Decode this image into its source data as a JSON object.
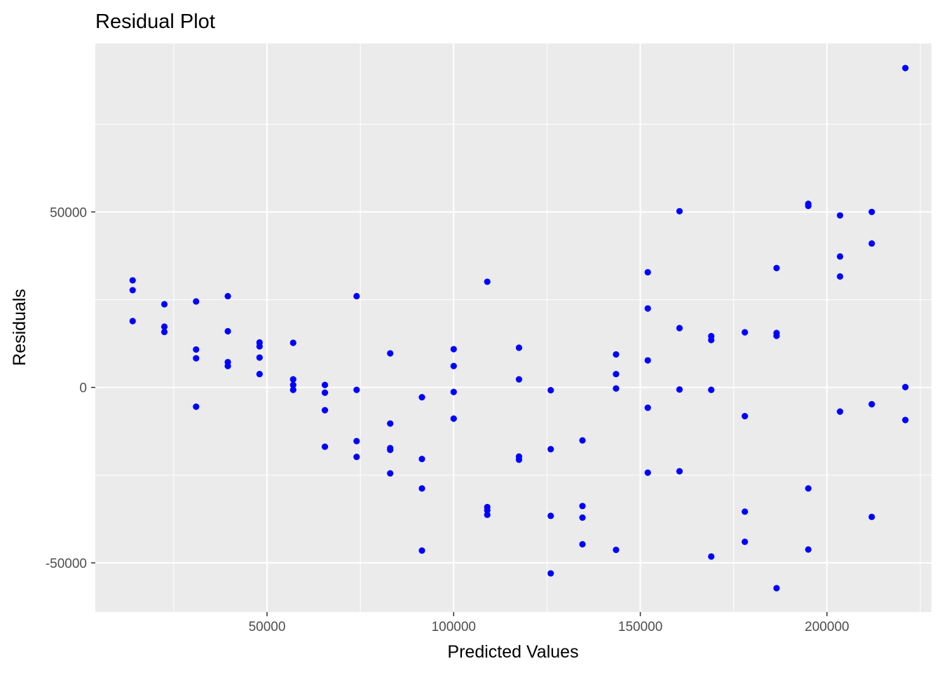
{
  "chart_data": {
    "type": "scatter",
    "title": "Residual Plot",
    "xlabel": "Predicted Values",
    "ylabel": "Residuals",
    "xlim": [
      4000,
      228000
    ],
    "ylim": [
      -64000,
      98000
    ],
    "x_ticks": [
      50000,
      100000,
      150000,
      200000
    ],
    "y_ticks": [
      -50000,
      0,
      50000
    ],
    "x_tick_labels": [
      "50000",
      "100000",
      "150000",
      "200000"
    ],
    "y_tick_labels": [
      "-50000",
      "0",
      "50000"
    ],
    "grid": true,
    "legend": "none",
    "colors": {
      "point": "#0000ff",
      "panel": "#ebebeb",
      "grid": "#ffffff",
      "tick_text": "#4d4d4d"
    },
    "series": [
      {
        "values": [
          [
            14000,
            30500
          ],
          [
            14000,
            27700
          ],
          [
            14000,
            18900
          ],
          [
            22500,
            23700
          ],
          [
            22500,
            17300
          ],
          [
            22500,
            15800
          ],
          [
            31000,
            24500
          ],
          [
            31000,
            10800
          ],
          [
            31000,
            8300
          ],
          [
            31000,
            -5500
          ],
          [
            39500,
            26000
          ],
          [
            39500,
            16000
          ],
          [
            39500,
            7200
          ],
          [
            39500,
            6100
          ],
          [
            48000,
            12800
          ],
          [
            48000,
            11700
          ],
          [
            48000,
            8500
          ],
          [
            48000,
            3800
          ],
          [
            57000,
            12700
          ],
          [
            57000,
            2300
          ],
          [
            57000,
            700
          ],
          [
            57000,
            -700
          ],
          [
            65500,
            700
          ],
          [
            65500,
            -1500
          ],
          [
            65500,
            -6500
          ],
          [
            65500,
            -16900
          ],
          [
            74000,
            26000
          ],
          [
            74000,
            -700
          ],
          [
            74000,
            -15300
          ],
          [
            74000,
            -19800
          ],
          [
            83000,
            9700
          ],
          [
            83000,
            -10300
          ],
          [
            83000,
            -17300
          ],
          [
            83000,
            -17800
          ],
          [
            83000,
            -24500
          ],
          [
            91500,
            -2800
          ],
          [
            91500,
            -20400
          ],
          [
            91500,
            -28800
          ],
          [
            91500,
            -46500
          ],
          [
            100000,
            10900
          ],
          [
            100000,
            6100
          ],
          [
            100000,
            -1300
          ],
          [
            100000,
            -8900
          ],
          [
            109000,
            30100
          ],
          [
            109000,
            -34100
          ],
          [
            109000,
            -35000
          ],
          [
            109000,
            -36300
          ],
          [
            117500,
            11300
          ],
          [
            117500,
            2300
          ],
          [
            117500,
            -19700
          ],
          [
            117500,
            -20600
          ],
          [
            126000,
            -800
          ],
          [
            126000,
            -17600
          ],
          [
            126000,
            -36600
          ],
          [
            126000,
            -53000
          ],
          [
            134500,
            -15100
          ],
          [
            134500,
            -33800
          ],
          [
            134500,
            -37100
          ],
          [
            134500,
            -44700
          ],
          [
            143500,
            9400
          ],
          [
            143500,
            3800
          ],
          [
            143500,
            -300
          ],
          [
            143500,
            -46300
          ],
          [
            152000,
            32800
          ],
          [
            152000,
            22500
          ],
          [
            152000,
            7700
          ],
          [
            152000,
            -5800
          ],
          [
            152000,
            -24300
          ],
          [
            160500,
            50200
          ],
          [
            160500,
            16900
          ],
          [
            160500,
            -600
          ],
          [
            160500,
            -23900
          ],
          [
            169000,
            14600
          ],
          [
            169000,
            13500
          ],
          [
            169000,
            -700
          ],
          [
            169000,
            -48200
          ],
          [
            178000,
            15700
          ],
          [
            178000,
            -8200
          ],
          [
            178000,
            -35400
          ],
          [
            178000,
            -44000
          ],
          [
            186500,
            34000
          ],
          [
            186500,
            15500
          ],
          [
            186500,
            14700
          ],
          [
            186500,
            -57200
          ],
          [
            195000,
            52300
          ],
          [
            195000,
            51700
          ],
          [
            195000,
            -28800
          ],
          [
            195000,
            -46200
          ],
          [
            203500,
            49000
          ],
          [
            203500,
            37300
          ],
          [
            203500,
            31600
          ],
          [
            203500,
            -6900
          ],
          [
            212000,
            50000
          ],
          [
            212000,
            41000
          ],
          [
            212000,
            -4800
          ],
          [
            212000,
            -36900
          ],
          [
            221000,
            91000
          ],
          [
            221000,
            100
          ],
          [
            221000,
            -9300
          ]
        ]
      }
    ]
  }
}
